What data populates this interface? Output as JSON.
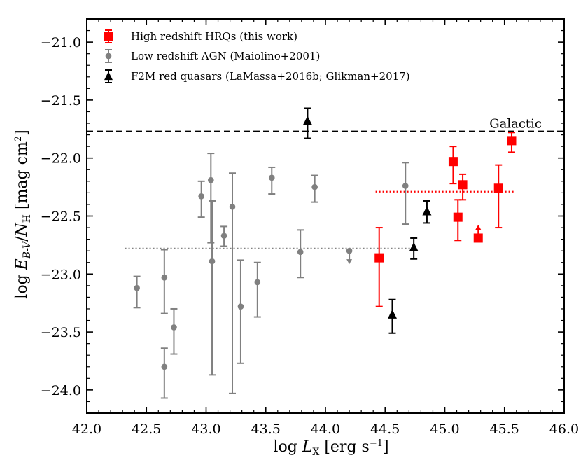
{
  "chart_data": {
    "type": "scatter",
    "xlabel": "log  L_X [erg s^-1]",
    "ylabel": "log  E_B-V / N_H [mag cm^2]",
    "xlim": [
      42.0,
      46.0
    ],
    "ylim": [
      -24.2,
      -20.8
    ],
    "xticks": [
      42.0,
      42.5,
      43.0,
      43.5,
      44.0,
      44.5,
      45.0,
      45.5,
      46.0
    ],
    "xtick_labels": [
      "42.0",
      "42.5",
      "43.0",
      "43.5",
      "44.0",
      "44.5",
      "45.0",
      "45.5",
      "46.0"
    ],
    "yticks": [
      -21.0,
      -21.5,
      -22.0,
      -22.5,
      -23.0,
      -23.5,
      -24.0
    ],
    "ytick_labels": [
      "−21.0",
      "−21.5",
      "−22.0",
      "−22.5",
      "−23.0",
      "−23.5",
      "−24.0"
    ],
    "galactic": {
      "y": -21.77,
      "label": "Galactic",
      "color": "#000000"
    },
    "legend_position": "top-left",
    "series": [
      {
        "name": "High redshift HRQs (this work)",
        "color": "#ff0000",
        "marker": "square",
        "points": [
          {
            "x": 44.45,
            "y": -22.86,
            "lo": -23.28,
            "hi": -22.6
          },
          {
            "x": 45.07,
            "y": -22.03,
            "lo": -22.22,
            "hi": -21.9
          },
          {
            "x": 45.11,
            "y": -22.51,
            "lo": -22.71,
            "hi": -22.36
          },
          {
            "x": 45.15,
            "y": -22.23,
            "lo": -22.36,
            "hi": -22.14
          },
          {
            "x": 45.28,
            "y": -22.69,
            "lo": null,
            "hi": null,
            "lower_limit": true
          },
          {
            "x": 45.45,
            "y": -22.26,
            "lo": -22.6,
            "hi": -22.06
          },
          {
            "x": 45.56,
            "y": -21.85,
            "lo": -21.95,
            "hi": -21.78
          }
        ],
        "mean_line": {
          "y": -22.29,
          "x_range": [
            44.42,
            45.58
          ]
        }
      },
      {
        "name": "Low redshift AGN (Maiolino+2001)",
        "color": "#808080",
        "marker": "circle",
        "points": [
          {
            "x": 42.42,
            "y": -23.12,
            "lo": -23.29,
            "hi": -23.02
          },
          {
            "x": 42.65,
            "y": -23.03,
            "lo": -23.34,
            "hi": -22.79
          },
          {
            "x": 42.65,
            "y": -23.8,
            "lo": -24.07,
            "hi": -23.64
          },
          {
            "x": 42.73,
            "y": -23.46,
            "lo": -23.69,
            "hi": -23.3
          },
          {
            "x": 42.96,
            "y": -22.33,
            "lo": -22.51,
            "hi": -22.2
          },
          {
            "x": 43.04,
            "y": -22.19,
            "lo": -22.73,
            "hi": -21.96
          },
          {
            "x": 43.05,
            "y": -22.89,
            "lo": -23.87,
            "hi": -22.37
          },
          {
            "x": 43.15,
            "y": -22.67,
            "lo": -22.76,
            "hi": -22.59
          },
          {
            "x": 43.22,
            "y": -22.42,
            "lo": -24.03,
            "hi": -22.13
          },
          {
            "x": 43.29,
            "y": -23.28,
            "lo": -23.77,
            "hi": -22.88
          },
          {
            "x": 43.43,
            "y": -23.07,
            "lo": -23.37,
            "hi": -22.9
          },
          {
            "x": 43.55,
            "y": -22.17,
            "lo": -22.31,
            "hi": -22.08
          },
          {
            "x": 43.79,
            "y": -22.81,
            "lo": -23.03,
            "hi": -22.62
          },
          {
            "x": 43.91,
            "y": -22.25,
            "lo": -22.38,
            "hi": -22.15
          },
          {
            "x": 44.2,
            "y": -22.8,
            "lo": null,
            "hi": null,
            "upper_limit": true
          },
          {
            "x": 44.67,
            "y": -22.24,
            "lo": -22.57,
            "hi": -22.04
          }
        ],
        "mean_line": {
          "y": -22.78,
          "x_range": [
            42.32,
            44.72
          ]
        }
      },
      {
        "name": "F2M red quasars (LaMassa+2016b; Glikman+2017)",
        "color": "#000000",
        "marker": "triangle",
        "points": [
          {
            "x": 43.85,
            "y": -21.68,
            "lo": -21.83,
            "hi": -21.57
          },
          {
            "x": 44.56,
            "y": -23.35,
            "lo": -23.51,
            "hi": -23.22
          },
          {
            "x": 44.74,
            "y": -22.77,
            "lo": -22.87,
            "hi": -22.69
          },
          {
            "x": 44.85,
            "y": -22.46,
            "lo": -22.56,
            "hi": -22.37
          }
        ]
      }
    ]
  }
}
